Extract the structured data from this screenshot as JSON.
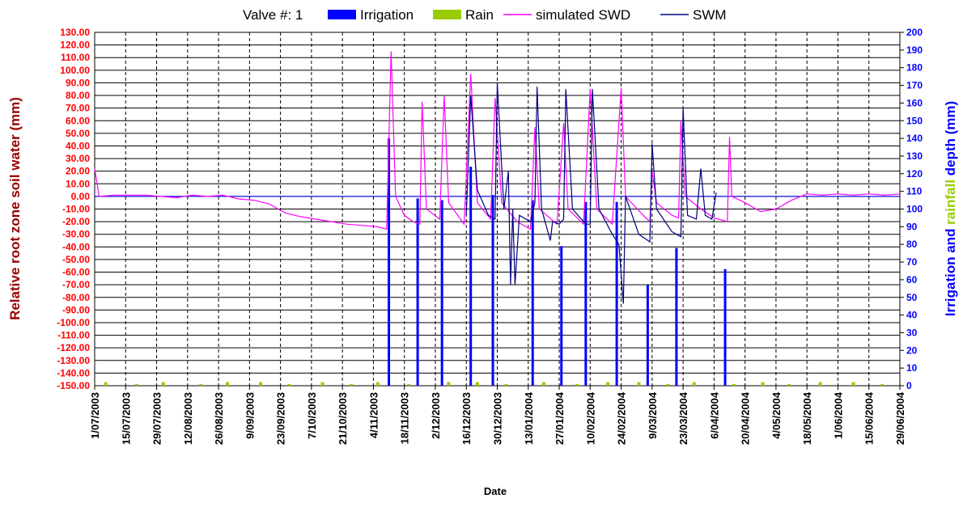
{
  "chart_data": {
    "type": "combo",
    "title": "Valve #: 1",
    "xlabel": "Date",
    "ylabel": "Relative root zone soil water  (mm)",
    "y2label": [
      "Irrigation and",
      "rainfall",
      "depth (mm)"
    ],
    "grid": true,
    "ylim": [
      -150,
      130
    ],
    "yticks": [
      {
        "value": 130,
        "label": "130.00"
      },
      {
        "value": 120,
        "label": "120.00"
      },
      {
        "value": 110,
        "label": "110.00"
      },
      {
        "value": 100,
        "label": "100.00"
      },
      {
        "value": 90,
        "label": "90.00"
      },
      {
        "value": 80,
        "label": "80.00"
      },
      {
        "value": 70,
        "label": "70.00"
      },
      {
        "value": 60,
        "label": "60.00"
      },
      {
        "value": 50,
        "label": "50.00"
      },
      {
        "value": 40,
        "label": "40.00"
      },
      {
        "value": 30,
        "label": "30.00"
      },
      {
        "value": 20,
        "label": "20.00"
      },
      {
        "value": 10,
        "label": "10.00"
      },
      {
        "value": 0,
        "label": "0.00"
      },
      {
        "value": -10,
        "label": "-10.00"
      },
      {
        "value": -20,
        "label": "-20.00"
      },
      {
        "value": -30,
        "label": "-30.00"
      },
      {
        "value": -40,
        "label": "-40.00"
      },
      {
        "value": -50,
        "label": "-50.00"
      },
      {
        "value": -60,
        "label": "-60.00"
      },
      {
        "value": -70,
        "label": "-70.00"
      },
      {
        "value": -80,
        "label": "-80.00"
      },
      {
        "value": -90,
        "label": "-90.00"
      },
      {
        "value": -100,
        "label": "-100.00"
      },
      {
        "value": -110,
        "label": "-110.00"
      },
      {
        "value": -120,
        "label": "-120.00"
      },
      {
        "value": -130,
        "label": "-130.00"
      },
      {
        "value": -140,
        "label": "-140.00"
      },
      {
        "value": -150,
        "label": "-150.00"
      }
    ],
    "y2lim": [
      0,
      200
    ],
    "y2ticks": [
      0,
      10,
      20,
      30,
      40,
      50,
      60,
      70,
      80,
      90,
      100,
      110,
      120,
      130,
      140,
      150,
      160,
      170,
      180,
      190,
      200
    ],
    "xlim": [
      "1/07/2003",
      "29/06/2004"
    ],
    "xticks": [
      "1/07/2003",
      "15/07/2003",
      "29/07/2003",
      "12/08/2003",
      "26/08/2003",
      "9/09/2003",
      "23/09/2003",
      "7/10/2003",
      "21/10/2003",
      "4/11/2003",
      "18/11/2003",
      "2/12/2003",
      "16/12/2003",
      "30/12/2003",
      "13/01/2004",
      "27/01/2004",
      "10/02/2004",
      "24/02/2004",
      "9/03/2004",
      "23/03/2004",
      "6/04/2004",
      "20/04/2004",
      "4/05/2004",
      "18/05/2004",
      "1/06/2004",
      "15/06/2004",
      "29/06/2004"
    ],
    "series": [
      {
        "name": "Irrigation",
        "type": "bar",
        "axis": "y2",
        "color": "#0000ff",
        "x": [
          "11/11/2003",
          "24/11/2003",
          "5/12/2003",
          "18/12/2003",
          "28/12/2003",
          "15/01/2004",
          "28/01/2004",
          "8/02/2004",
          "22/02/2004",
          "7/03/2004",
          "20/03/2004",
          "11/04/2004"
        ],
        "values": [
          140,
          106,
          105,
          124,
          108,
          105,
          79,
          104,
          104,
          57,
          78,
          66
        ]
      },
      {
        "name": "Rain",
        "type": "bar",
        "axis": "y2",
        "color": "#99cc00",
        "x": [
          "6/07/2003",
          "20/07/2003",
          "1/08/2003",
          "18/08/2003",
          "30/08/2003",
          "14/09/2003",
          "27/09/2003",
          "12/10/2003",
          "25/10/2003",
          "6/11/2003",
          "20/11/2003",
          "8/12/2003",
          "21/12/2003",
          "3/01/2004",
          "20/01/2004",
          "4/02/2004",
          "18/02/2004",
          "3/03/2004",
          "16/03/2004",
          "28/03/2004",
          "15/04/2004",
          "28/04/2004",
          "10/05/2004",
          "24/05/2004",
          "8/06/2004",
          "21/06/2004"
        ],
        "values": [
          2,
          1,
          2,
          1,
          2,
          2,
          1,
          2,
          1,
          2,
          1,
          2,
          2,
          1,
          2,
          1,
          2,
          2,
          1,
          2,
          1,
          2,
          1,
          2,
          2,
          1
        ]
      },
      {
        "name": "simulated SWD",
        "type": "line",
        "color": "#ff00ff",
        "x": [
          "1/07/2003",
          "3/07/2003",
          "10/07/2003",
          "24/07/2003",
          "7/08/2003",
          "14/08/2003",
          "21/08/2003",
          "28/08/2003",
          "4/09/2003",
          "11/09/2003",
          "18/09/2003",
          "25/09/2003",
          "2/10/2003",
          "9/10/2003",
          "16/10/2003",
          "23/10/2003",
          "30/10/2003",
          "6/11/2003",
          "10/11/2003",
          "12/11/2003",
          "14/11/2003",
          "18/11/2003",
          "22/11/2003",
          "25/11/2003",
          "26/11/2003",
          "28/11/2003",
          "4/12/2003",
          "6/12/2003",
          "8/12/2003",
          "15/12/2003",
          "18/12/2003",
          "21/12/2003",
          "27/12/2003",
          "29/12/2003",
          "1/01/2004",
          "8/01/2004",
          "14/01/2004",
          "16/01/2004",
          "18/01/2004",
          "26/01/2004",
          "29/01/2004",
          "31/01/2004",
          "7/02/2004",
          "10/02/2004",
          "13/02/2004",
          "20/02/2004",
          "24/02/2004",
          "26/02/2004",
          "5/03/2004",
          "8/03/2004",
          "9/03/2004",
          "11/03/2004",
          "18/03/2004",
          "21/03/2004",
          "22/03/2004",
          "24/03/2004",
          "31/03/2004",
          "6/04/2004",
          "12/04/2004",
          "13/04/2004",
          "14/04/2004",
          "20/04/2004",
          "27/04/2004",
          "4/05/2004",
          "11/05/2004",
          "18/05/2004",
          "25/05/2004",
          "1/06/2004",
          "8/06/2004",
          "15/06/2004",
          "22/06/2004",
          "29/06/2004"
        ],
        "values": [
          22,
          0,
          1,
          1,
          -1,
          1,
          0,
          1,
          -2,
          -3,
          -6,
          -13,
          -16,
          -18,
          -20,
          -22,
          -23,
          -24,
          -26,
          115,
          0,
          -15,
          -20,
          -22,
          75,
          -10,
          -18,
          80,
          -5,
          -22,
          97,
          -5,
          -18,
          78,
          -5,
          -20,
          -26,
          55,
          -10,
          -22,
          58,
          -10,
          -22,
          85,
          -10,
          -22,
          86,
          0,
          -15,
          -20,
          20,
          -5,
          -15,
          -17,
          60,
          0,
          -10,
          -17,
          -20,
          47,
          0,
          -5,
          -12,
          -10,
          -3,
          2,
          1,
          2,
          1,
          2,
          1,
          2
        ]
      },
      {
        "name": "SWM",
        "type": "line",
        "color": "#000080",
        "x": [
          "16/12/2003",
          "18/12/2003",
          "21/12/2003",
          "26/12/2003",
          "29/12/2003",
          "30/12/2003",
          "2/01/2004",
          "4/01/2004",
          "5/01/2004",
          "6/01/2004",
          "7/01/2004",
          "9/01/2004",
          "14/01/2004",
          "16/01/2004",
          "17/01/2004",
          "19/01/2004",
          "23/01/2004",
          "24/01/2004",
          "27/01/2004",
          "29/01/2004",
          "30/01/2004",
          "2/02/2004",
          "8/02/2004",
          "10/02/2004",
          "11/02/2004",
          "14/02/2004",
          "20/02/2004",
          "23/02/2004",
          "25/02/2004",
          "26/02/2004",
          "3/03/2004",
          "8/03/2004",
          "9/03/2004",
          "11/03/2004",
          "18/03/2004",
          "22/03/2004",
          "23/03/2004",
          "25/03/2004",
          "29/03/2004",
          "31/03/2004",
          "2/04/2004",
          "5/04/2004",
          "7/04/2004"
        ],
        "values": [
          -15,
          80,
          5,
          -15,
          -18,
          90,
          -10,
          20,
          -70,
          -10,
          -70,
          -15,
          -20,
          -5,
          87,
          -10,
          -35,
          -20,
          -22,
          -18,
          85,
          -10,
          -22,
          -22,
          85,
          -10,
          -30,
          -38,
          -85,
          0,
          -30,
          -36,
          42,
          -10,
          -28,
          -32,
          70,
          -15,
          -18,
          22,
          -15,
          -18,
          3
        ]
      }
    ]
  }
}
